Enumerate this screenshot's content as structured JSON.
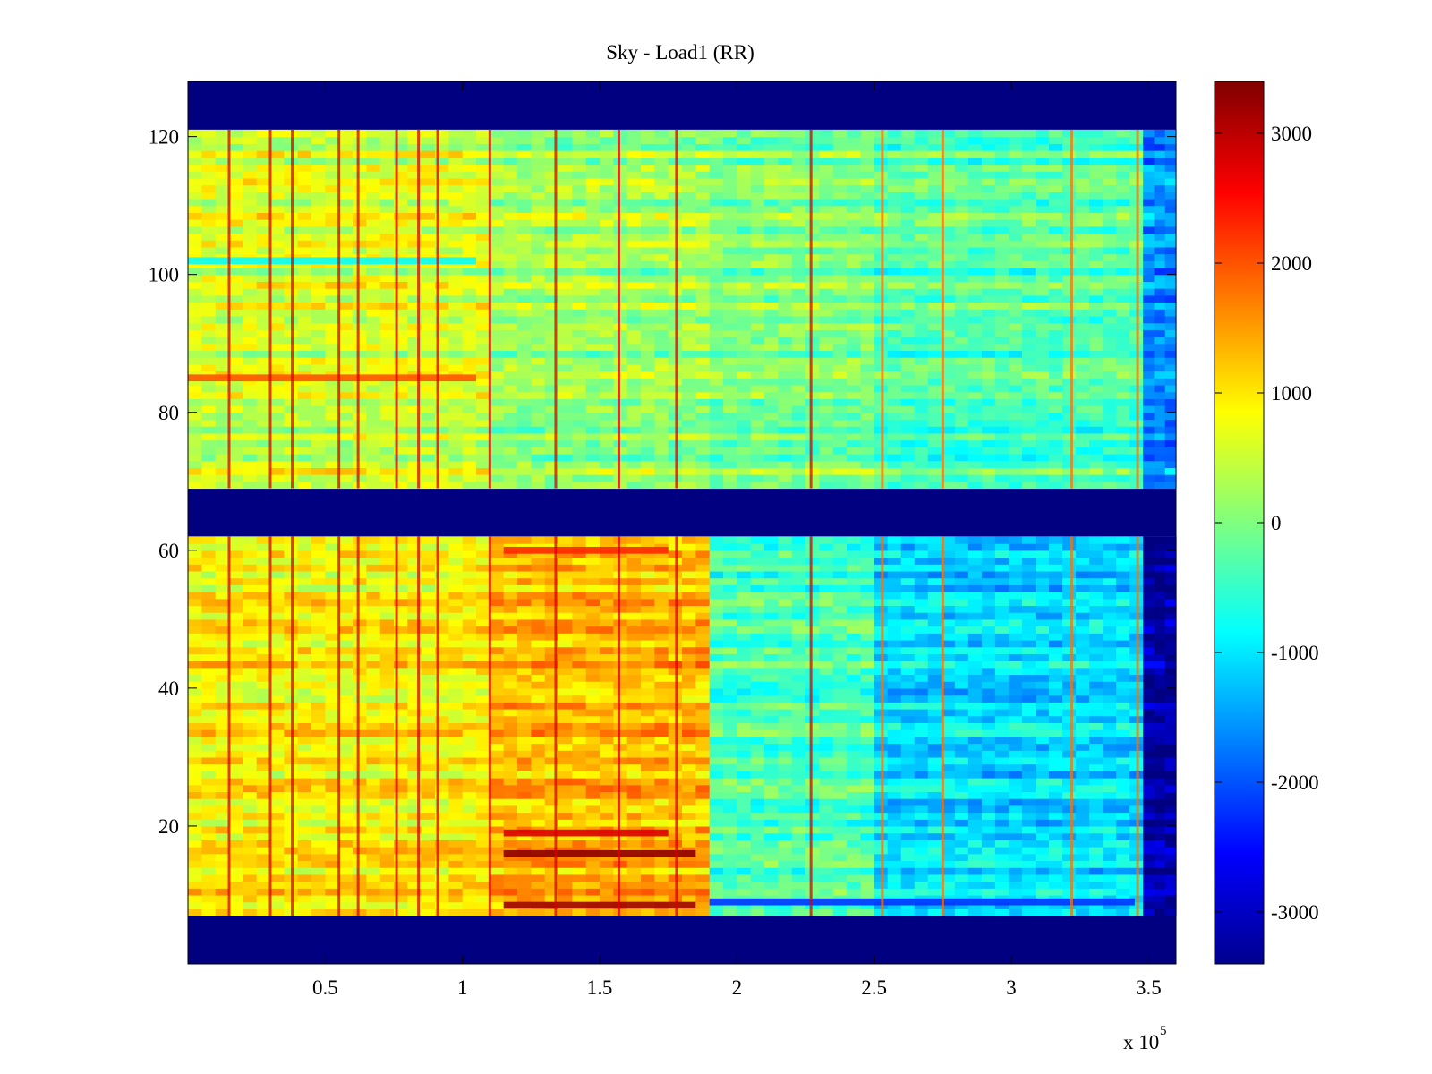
{
  "chart_data": {
    "type": "heatmap",
    "title": "Sky - Load1 (RR)",
    "xlabel": "",
    "ylabel": "",
    "x_multiplier_label": "x 10",
    "x_multiplier_exponent": "5",
    "x_multiplier": 100000,
    "xlim": [
      0,
      3.6
    ],
    "ylim": [
      0,
      128
    ],
    "x_ticks": [
      0.5,
      1,
      1.5,
      2,
      2.5,
      3,
      3.5
    ],
    "x_tick_labels": [
      "0.5",
      "1",
      "1.5",
      "2",
      "2.5",
      "3",
      "3.5"
    ],
    "y_ticks": [
      20,
      40,
      60,
      80,
      100,
      120
    ],
    "y_tick_labels": [
      "20",
      "40",
      "60",
      "80",
      "100",
      "120"
    ],
    "colormap": "jet",
    "clim": [
      -3400,
      3400
    ],
    "colorbar_ticks": [
      3000,
      2000,
      1000,
      0,
      -1000,
      -2000,
      -3000
    ],
    "colorbar_tick_labels": [
      "3000",
      "2000",
      "1000",
      "0",
      "-1000",
      "-2000",
      "-3000"
    ],
    "colorbar_placement": "right",
    "masked_value": -3400,
    "masked_y_bands": [
      [
        0,
        7
      ],
      [
        62,
        69
      ],
      [
        121,
        128
      ]
    ],
    "data_y_bands": [
      [
        7,
        62
      ],
      [
        69,
        121
      ]
    ],
    "x_sections": [
      {
        "x": [
          0,
          1.1
        ],
        "lower_band_mean": 900,
        "upper_band_mean": 600
      },
      {
        "x": [
          1.1,
          1.9
        ],
        "lower_band_mean": 1300,
        "upper_band_mean": 200
      },
      {
        "x": [
          1.9,
          2.5
        ],
        "lower_band_mean": -400,
        "upper_band_mean": 0
      },
      {
        "x": [
          2.5,
          3.48
        ],
        "lower_band_mean": -1100,
        "upper_band_mean": -300
      },
      {
        "x": [
          3.48,
          3.6
        ],
        "lower_band_mean": -3200,
        "upper_band_mean": -1600
      }
    ],
    "strong_rows": [
      {
        "y": 8.5,
        "x": [
          1.15,
          1.85
        ],
        "value": 3200
      },
      {
        "y": 16,
        "x": [
          1.15,
          1.85
        ],
        "value": 3300
      },
      {
        "y": 19,
        "x": [
          1.15,
          1.75
        ],
        "value": 2800
      },
      {
        "y": 60,
        "x": [
          1.15,
          1.75
        ],
        "value": 2300
      },
      {
        "y": 85,
        "x": [
          0,
          1.05
        ],
        "value": 2000
      },
      {
        "y": 9,
        "x": [
          1.9,
          3.45
        ],
        "value": -2200
      },
      {
        "y": 102,
        "x": [
          0,
          1.05
        ],
        "value": -800
      }
    ],
    "strong_columns": [
      0.15,
      0.3,
      0.38,
      0.55,
      0.62,
      0.76,
      0.84,
      0.91,
      1.1,
      1.34,
      1.57,
      1.78,
      2.27,
      2.53,
      2.75,
      3.22,
      3.46
    ],
    "legend": []
  }
}
